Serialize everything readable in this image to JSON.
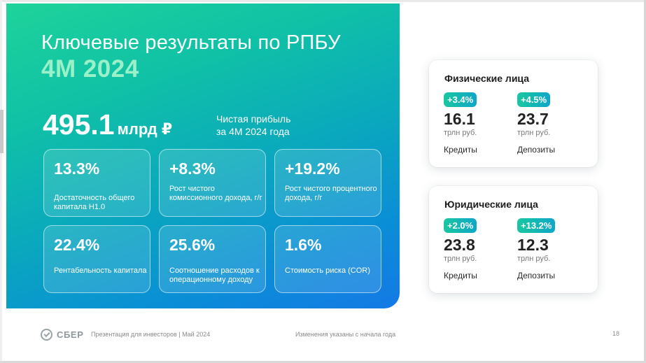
{
  "hero": {
    "title": "Ключевые результаты по РПБУ",
    "period": "4M 2024",
    "profit_value": "495.1",
    "profit_unit": "млрд ₽",
    "profit_desc_line1": "Чистая прибыль",
    "profit_desc_line2": "за 4М 2024 года"
  },
  "kpis": [
    {
      "value": "13.3%",
      "label": "Достаточность общего капитала Н1.0"
    },
    {
      "value": "+8.3%",
      "label": "Рост чистого комиссионного дохода, г/г"
    },
    {
      "value": "+19.2%",
      "label": "Рост чистого процентного дохода, г/г"
    },
    {
      "value": "22.4%",
      "label": "Рентабельность капитала"
    },
    {
      "value": "25.6%",
      "label": "Соотношение расходов к операционному доходу"
    },
    {
      "value": "1.6%",
      "label": "Стоимость риска (COR)"
    }
  ],
  "segments": [
    {
      "title": "Физические лица",
      "items": [
        {
          "change": "+3.4%",
          "value": "16.1",
          "unit": "трлн руб.",
          "label": "Кредиты"
        },
        {
          "change": "+4.5%",
          "value": "23.7",
          "unit": "трлн руб.",
          "label": "Депозиты"
        }
      ]
    },
    {
      "title": "Юридические лица",
      "items": [
        {
          "change": "+2.0%",
          "value": "23.8",
          "unit": "трлн руб.",
          "label": "Кредиты"
        },
        {
          "change": "+13.2%",
          "value": "12.3",
          "unit": "трлн руб.",
          "label": "Депозиты"
        }
      ]
    }
  ],
  "footer": {
    "logo_text": "СБЕР",
    "presentation": "Презентация для инвесторов | Май 2024",
    "note": "Изменения указаны с начала года",
    "page": "18"
  },
  "colors": {
    "gradient_start": "#1fd39a",
    "gradient_end": "#1479e6",
    "period_accent": "#9af0c8",
    "badge": "#0fbfae"
  }
}
